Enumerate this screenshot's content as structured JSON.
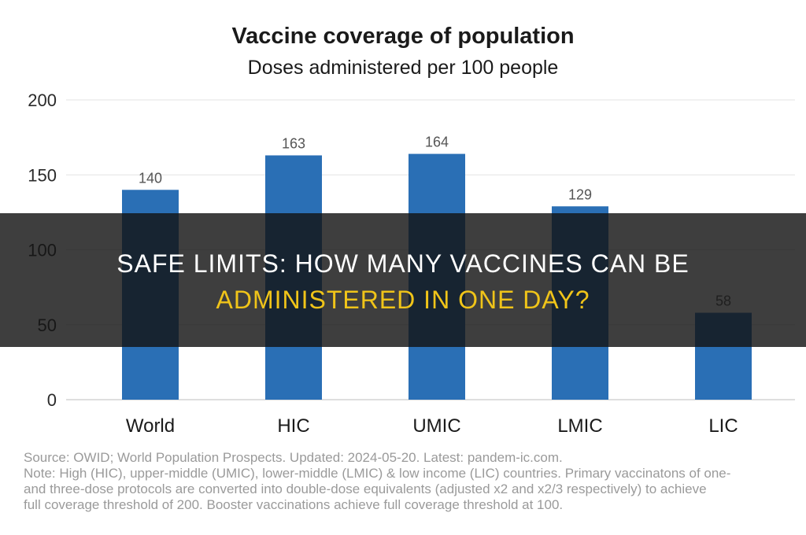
{
  "chart_data": {
    "type": "bar",
    "title": "Vaccine coverage of population",
    "subtitle": "Doses administered per 100 people",
    "categories": [
      "World",
      "HIC",
      "UMIC",
      "LMIC",
      "LIC"
    ],
    "values": [
      140,
      163,
      164,
      129,
      58
    ],
    "ylim": [
      0,
      200
    ],
    "yticks": [
      0,
      50,
      100,
      150,
      200
    ],
    "grid": true,
    "bar_color": "#2a6fb5"
  },
  "footer": {
    "lines": [
      "Source: OWID; World Population Prospects. Updated: 2024-05-20. Latest: pandem-ic.com.",
      "Note: High (HIC), upper-middle (UMIC), lower-middle (LMIC) & low income (LIC) countries. Primary vaccinatons of one-",
      "and three-dose protocols are converted into double-dose equivalents (adjusted x2 and x2/3 respectively) to achieve",
      "full coverage threshold of 200. Booster vaccinations achieve full coverage threshold at 100."
    ]
  },
  "banner": {
    "line1": "SAFE LIMITS: HOW MANY VACCINES CAN BE",
    "line2": "ADMINISTERED IN ONE DAY?",
    "line1_color": "#ffffff",
    "line2_color": "#f0c419"
  }
}
